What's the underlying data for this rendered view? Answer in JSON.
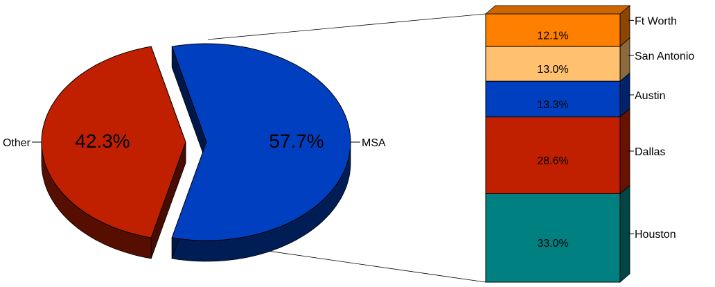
{
  "chart_data": {
    "type": "pie",
    "pie": {
      "slices": [
        {
          "label": "MSA",
          "value": 57.7,
          "value_label": "57.7%",
          "color": "#0040C0"
        },
        {
          "label": "Other",
          "value": 42.3,
          "value_label": "42.3%",
          "color": "#C02000"
        }
      ]
    },
    "breakdown": {
      "of_slice": "MSA",
      "type": "stacked-bar",
      "segments": [
        {
          "label": "Houston",
          "value": 33.0,
          "value_label": "33.0%",
          "color": "#008080"
        },
        {
          "label": "Dallas",
          "value": 28.6,
          "value_label": "28.6%",
          "color": "#C02000"
        },
        {
          "label": "Austin",
          "value": 13.3,
          "value_label": "13.3%",
          "color": "#0040C0"
        },
        {
          "label": "San Antonio",
          "value": 13.0,
          "value_label": "13.0%",
          "color": "#FFC070"
        },
        {
          "label": "Ft Worth",
          "value": 12.1,
          "value_label": "12.1%",
          "color": "#FF8000"
        }
      ]
    }
  }
}
